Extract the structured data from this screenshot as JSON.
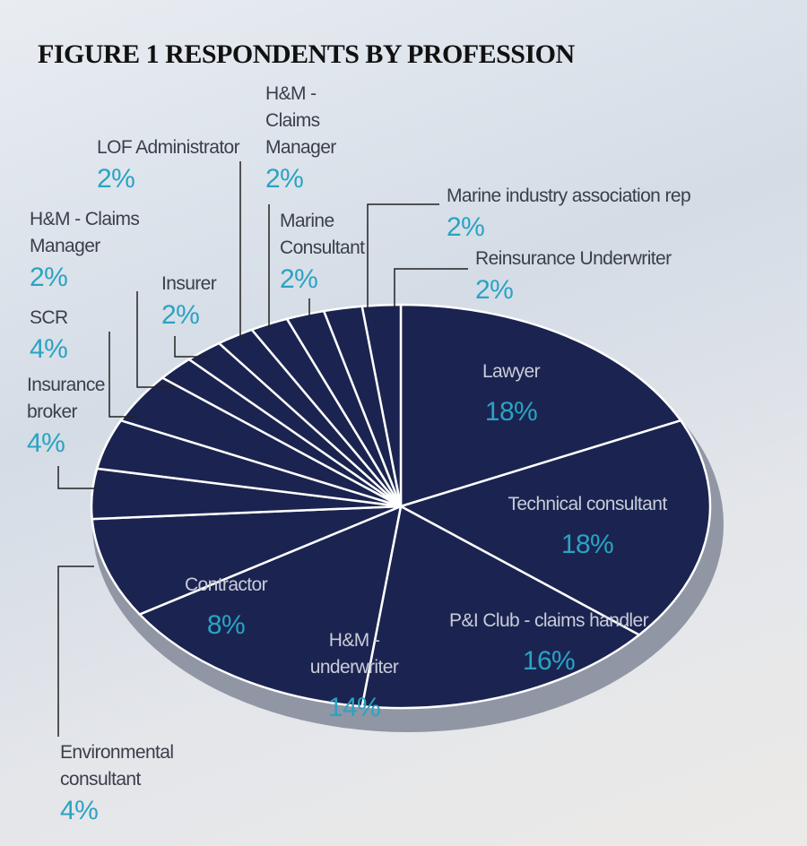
{
  "chart_data": {
    "type": "pie",
    "title": "FIGURE 1 RESPONDENTS BY PROFESSION",
    "categories": [
      "Lawyer",
      "Technical consultant",
      "P&I Club - claims handler",
      "H&M - underwriter",
      "Contractor",
      "Environmental consultant",
      "Insurance broker",
      "SCR",
      "H&M - Claims Manager",
      "Insurer",
      "LOF Administrator",
      "H&M - Claims Manager",
      "Marine Consultant",
      "Marine industry association rep",
      "Reinsurance Underwriter"
    ],
    "values": [
      18,
      18,
      16,
      14,
      8,
      4,
      4,
      4,
      2,
      2,
      2,
      2,
      2,
      2,
      2
    ],
    "value_labels": [
      "18%",
      "18%",
      "16%",
      "14%",
      "8%",
      "4%",
      "4%",
      "4%",
      "2%",
      "2%",
      "2%",
      "2%",
      "2%",
      "2%",
      "2%"
    ],
    "color": "#1b2450"
  }
}
